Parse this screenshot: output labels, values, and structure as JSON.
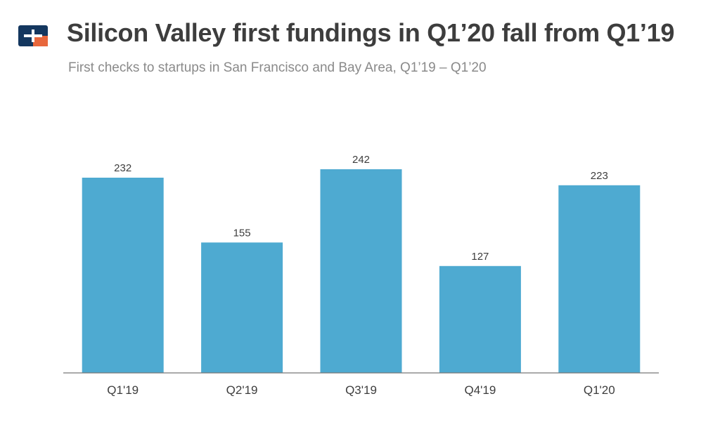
{
  "header": {
    "title": "Silicon Valley first fundings in Q1’20 fall from Q1’19",
    "subtitle": "First checks to startups in San Francisco and Bay Area, Q1’19 – Q1’20"
  },
  "logo": {
    "icon": "crunchbase-logo-icon",
    "colors": [
      "#14375f",
      "#e8673c"
    ]
  },
  "chart_data": {
    "type": "bar",
    "categories": [
      "Q1'19",
      "Q2'19",
      "Q3'19",
      "Q4'19",
      "Q1'20"
    ],
    "values": [
      232,
      155,
      242,
      127,
      223
    ],
    "title": "Silicon Valley first fundings in Q1’20 fall from Q1’19",
    "subtitle": "First checks to startups in San Francisco and Bay Area, Q1’19 – Q1’20",
    "xlabel": "",
    "ylabel": "",
    "ylim": [
      0,
      242
    ],
    "grid": false,
    "data_labels": true,
    "bar_color": "#4eaad1",
    "axis_color": "#777777"
  }
}
